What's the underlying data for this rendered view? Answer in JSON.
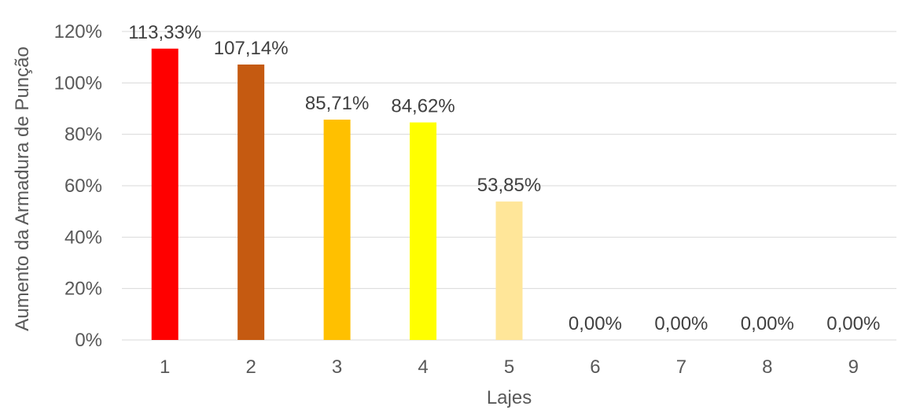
{
  "chart_data": {
    "type": "bar",
    "xlabel": "Lajes",
    "ylabel": "Aumento da Armadura de Punção",
    "categories": [
      "1",
      "2",
      "3",
      "4",
      "5",
      "6",
      "7",
      "8",
      "9"
    ],
    "values": [
      113.33,
      107.14,
      85.71,
      84.62,
      53.85,
      0,
      0,
      0,
      0
    ],
    "data_labels": [
      "113,33%",
      "107,14%",
      "85,71%",
      "84,62%",
      "53,85%",
      "0,00%",
      "0,00%",
      "0,00%",
      "0,00%"
    ],
    "bar_colors": [
      "#ff0000",
      "#c55a11",
      "#ffc000",
      "#ffff00",
      "#ffe699",
      "#ffffff",
      "#ffffff",
      "#ffffff",
      "#ffffff"
    ],
    "ylim": [
      0,
      120
    ],
    "yticks": [
      0,
      20,
      40,
      60,
      80,
      100,
      120
    ],
    "ytick_labels": [
      "0%",
      "20%",
      "40%",
      "60%",
      "80%",
      "100%",
      "120%"
    ],
    "grid": true,
    "legend": "none"
  }
}
